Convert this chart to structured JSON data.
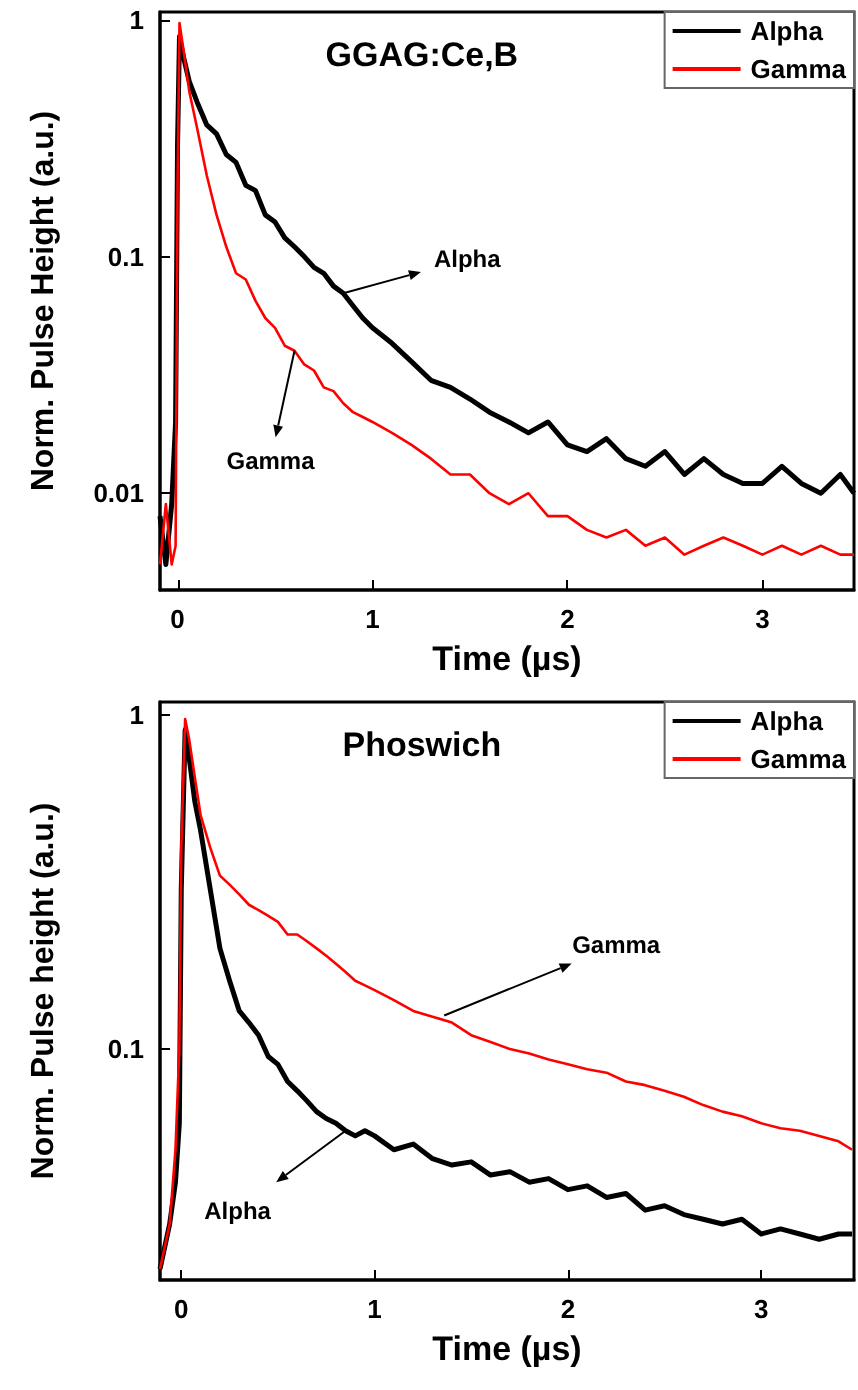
{
  "chart_data": [
    {
      "type": "line",
      "title": "GGAG:Ce,B",
      "xlabel": "Time (µs)",
      "ylabel": "Norm. Pulse Height (a.u.)",
      "log": "y",
      "grid": false,
      "legend": "top right",
      "marker": "none",
      "line_style": "solid",
      "xlim": [
        -0.09,
        3.47
      ],
      "xticks": [
        0,
        1,
        2,
        3
      ],
      "ylim": [
        0.0039,
        1.08
      ],
      "yticks": [
        0.01,
        0.1,
        1
      ],
      "x": [
        -0.09,
        -0.06,
        -0.03,
        -0.01,
        0,
        0.01,
        0.03,
        0.06,
        0.1,
        0.15,
        0.2,
        0.25,
        0.3,
        0.35,
        0.4,
        0.45,
        0.5,
        0.55,
        0.6,
        0.65,
        0.7,
        0.75,
        0.8,
        0.85,
        0.9,
        0.95,
        1.0,
        1.1,
        1.2,
        1.3,
        1.4,
        1.5,
        1.6,
        1.7,
        1.8,
        1.9,
        2.0,
        2.1,
        2.2,
        2.3,
        2.4,
        2.5,
        2.6,
        2.7,
        2.8,
        2.9,
        3.0,
        3.1,
        3.2,
        3.3,
        3.4,
        3.47
      ],
      "series": [
        {
          "name": "Alpha",
          "color": "#000000",
          "values": [
            0.008,
            0.005,
            0.009,
            0.02,
            0.3,
            0.85,
            0.7,
            0.55,
            0.45,
            0.36,
            0.33,
            0.27,
            0.25,
            0.2,
            0.19,
            0.15,
            0.14,
            0.12,
            0.11,
            0.1,
            0.09,
            0.085,
            0.075,
            0.07,
            0.062,
            0.055,
            0.05,
            0.043,
            0.036,
            0.03,
            0.028,
            0.025,
            0.022,
            0.02,
            0.018,
            0.02,
            0.016,
            0.015,
            0.017,
            0.014,
            0.013,
            0.015,
            0.012,
            0.014,
            0.012,
            0.011,
            0.011,
            0.013,
            0.011,
            0.01,
            0.012,
            0.01
          ]
        },
        {
          "name": "Gamma",
          "color": "#ff0000",
          "values": [
            0.005,
            0.009,
            0.005,
            0.006,
            0.2,
            0.97,
            0.75,
            0.5,
            0.35,
            0.22,
            0.15,
            0.11,
            0.085,
            0.08,
            0.065,
            0.055,
            0.05,
            0.042,
            0.04,
            0.035,
            0.033,
            0.028,
            0.027,
            0.024,
            0.022,
            0.021,
            0.02,
            0.018,
            0.016,
            0.014,
            0.012,
            0.012,
            0.01,
            0.009,
            0.01,
            0.008,
            0.008,
            0.007,
            0.0065,
            0.007,
            0.006,
            0.0065,
            0.0055,
            0.006,
            0.0065,
            0.006,
            0.0055,
            0.006,
            0.0055,
            0.006,
            0.0055,
            0.0055
          ]
        }
      ],
      "annotations": [
        {
          "text": "Alpha",
          "x": 0.85,
          "y": 0.07
        },
        {
          "text": "Gamma",
          "x": 0.6,
          "y": 0.04
        }
      ]
    },
    {
      "type": "line",
      "title": "Phoswich",
      "xlabel": "Time (µs)",
      "ylabel": "Norm. Pulse height (a.u.)",
      "log": "y",
      "grid": false,
      "legend": "top right",
      "marker": "none",
      "line_style": "solid",
      "xlim": [
        -0.11,
        3.48
      ],
      "xticks": [
        0,
        1,
        2,
        3
      ],
      "ylim": [
        0.0204,
        1.09
      ],
      "yticks": [
        0.1,
        1
      ],
      "x": [
        -0.11,
        -0.06,
        -0.03,
        -0.01,
        0,
        0.02,
        0.04,
        0.07,
        0.1,
        0.15,
        0.2,
        0.25,
        0.3,
        0.35,
        0.4,
        0.45,
        0.5,
        0.55,
        0.6,
        0.65,
        0.7,
        0.75,
        0.8,
        0.85,
        0.9,
        0.95,
        1.0,
        1.1,
        1.2,
        1.3,
        1.4,
        1.5,
        1.6,
        1.7,
        1.8,
        1.9,
        2.0,
        2.1,
        2.2,
        2.3,
        2.4,
        2.5,
        2.6,
        2.7,
        2.8,
        2.9,
        3.0,
        3.1,
        3.2,
        3.3,
        3.4,
        3.47
      ],
      "series": [
        {
          "name": "Alpha",
          "color": "#000000",
          "values": [
            0.022,
            0.03,
            0.04,
            0.06,
            0.3,
            0.9,
            0.75,
            0.55,
            0.45,
            0.3,
            0.2,
            0.16,
            0.13,
            0.12,
            0.11,
            0.095,
            0.09,
            0.08,
            0.075,
            0.07,
            0.065,
            0.062,
            0.06,
            0.057,
            0.055,
            0.057,
            0.055,
            0.05,
            0.052,
            0.047,
            0.045,
            0.046,
            0.042,
            0.043,
            0.04,
            0.041,
            0.038,
            0.039,
            0.036,
            0.037,
            0.033,
            0.034,
            0.032,
            0.031,
            0.03,
            0.031,
            0.028,
            0.029,
            0.028,
            0.027,
            0.028,
            0.028
          ]
        },
        {
          "name": "Gamma",
          "color": "#ff0000",
          "values": [
            0.022,
            0.03,
            0.05,
            0.1,
            0.4,
            0.97,
            0.85,
            0.65,
            0.5,
            0.4,
            0.33,
            0.31,
            0.29,
            0.27,
            0.26,
            0.25,
            0.24,
            0.22,
            0.22,
            0.21,
            0.2,
            0.19,
            0.18,
            0.17,
            0.16,
            0.155,
            0.15,
            0.14,
            0.13,
            0.125,
            0.12,
            0.11,
            0.105,
            0.1,
            0.097,
            0.093,
            0.09,
            0.087,
            0.085,
            0.08,
            0.078,
            0.075,
            0.072,
            0.068,
            0.065,
            0.063,
            0.06,
            0.058,
            0.057,
            0.055,
            0.053,
            0.05
          ]
        }
      ],
      "annotations": [
        {
          "text": "Gamma",
          "x": 1.36,
          "y": 0.126
        },
        {
          "text": "Alpha",
          "x": 0.85,
          "y": 0.057
        }
      ]
    }
  ]
}
